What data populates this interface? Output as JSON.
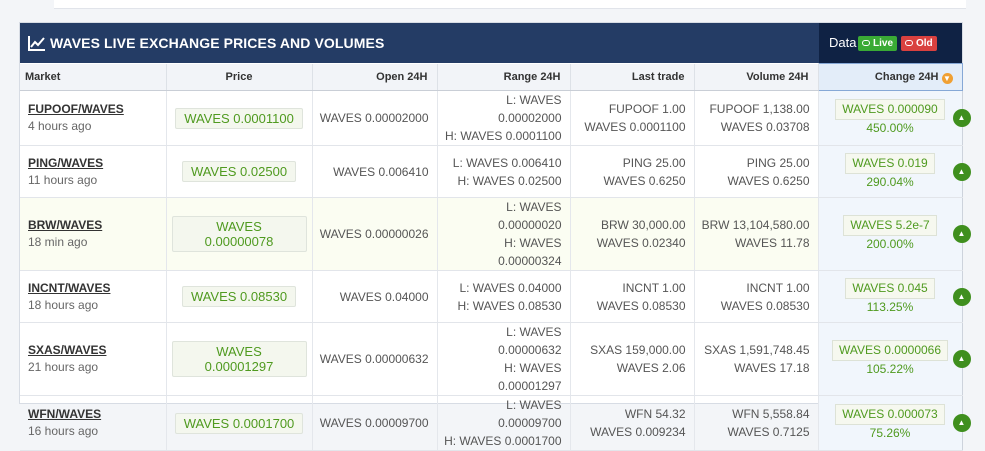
{
  "header": {
    "title": "WAVES LIVE EXCHANGE PRICES AND VOLUMES",
    "data_label": "Data",
    "live_label": "Live",
    "old_label": "Old"
  },
  "columns": [
    "Market",
    "Price",
    "Open 24H",
    "Range 24H",
    "Last trade",
    "Volume 24H",
    "Change 24H"
  ],
  "rows": [
    {
      "market": "FUPOOF/WAVES",
      "time": "4 hours ago",
      "price": "WAVES 0.0001100",
      "open": "WAVES 0.00002000",
      "range_low": "L: WAVES 0.00002000",
      "range_high": "H: WAVES 0.0001100",
      "last_amount": "FUPOOF 1.00",
      "last_price": "WAVES 0.0001100",
      "vol_asset": "FUPOOF 1,138.00",
      "vol_waves": "WAVES 0.03708",
      "change": "WAVES 0.000090",
      "change_pct": "450.00%"
    },
    {
      "market": "PING/WAVES",
      "time": "11 hours ago",
      "price": "WAVES 0.02500",
      "open": "WAVES 0.006410",
      "range_low": "L: WAVES 0.006410",
      "range_high": "H: WAVES 0.02500",
      "last_amount": "PING 25.00",
      "last_price": "WAVES 0.6250",
      "vol_asset": "PING 25.00",
      "vol_waves": "WAVES 0.6250",
      "change": "WAVES 0.019",
      "change_pct": "290.04%"
    },
    {
      "market": "BRW/WAVES",
      "time": "18 min ago",
      "price": "WAVES 0.00000078",
      "open": "WAVES 0.00000026",
      "range_low": "L: WAVES 0.00000020",
      "range_high": "H: WAVES 0.00000324",
      "last_amount": "BRW 30,000.00",
      "last_price": "WAVES 0.02340",
      "vol_asset": "BRW 13,104,580.00",
      "vol_waves": "WAVES 11.78",
      "change": "WAVES 5.2e-7",
      "change_pct": "200.00%"
    },
    {
      "market": "INCNT/WAVES",
      "time": "18 hours ago",
      "price": "WAVES 0.08530",
      "open": "WAVES 0.04000",
      "range_low": "L: WAVES 0.04000",
      "range_high": "H: WAVES 0.08530",
      "last_amount": "INCNT 1.00",
      "last_price": "WAVES 0.08530",
      "vol_asset": "INCNT 1.00",
      "vol_waves": "WAVES 0.08530",
      "change": "WAVES 0.045",
      "change_pct": "113.25%"
    },
    {
      "market": "SXAS/WAVES",
      "time": "21 hours ago",
      "price": "WAVES 0.00001297",
      "open": "WAVES 0.00000632",
      "range_low": "L: WAVES 0.00000632",
      "range_high": "H: WAVES 0.00001297",
      "last_amount": "SXAS 159,000.00",
      "last_price": "WAVES 2.06",
      "vol_asset": "SXAS 1,591,748.45",
      "vol_waves": "WAVES 17.18",
      "change": "WAVES 0.0000066",
      "change_pct": "105.22%"
    },
    {
      "market": "WFN/WAVES",
      "time": "16 hours ago",
      "price": "WAVES 0.0001700",
      "open": "WAVES 0.00009700",
      "range_low": "L: WAVES 0.00009700",
      "range_high": "H: WAVES 0.0001700",
      "last_amount": "WFN 54.32",
      "last_price": "WAVES 0.009234",
      "vol_asset": "WFN 5,558.84",
      "vol_waves": "WAVES 0.7125",
      "change": "WAVES 0.000073",
      "change_pct": "75.26%"
    }
  ],
  "icons": {
    "title": "line-chart-icon",
    "sort": "sort-desc-icon",
    "row_action": "chevron-up-icon"
  },
  "colors": {
    "header_bg": "#243c65",
    "data_bg": "#0f2244",
    "live": "#3aaa35",
    "old": "#d9413f",
    "positive": "#4f9a1f"
  }
}
